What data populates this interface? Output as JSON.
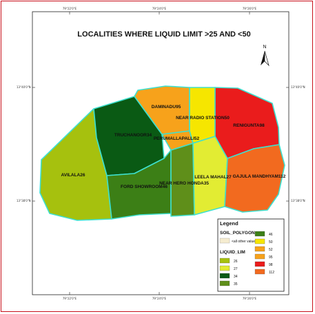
{
  "map": {
    "title": "LOCALITIES WHERE LIQUID LIMIT >25 AND <50",
    "north_label": "N",
    "top_ticks": [
      "79°22'0\"E",
      "79°24'0\"E",
      "79°26'0\"E"
    ],
    "bottom_ticks": [
      "79°22'0\"E",
      "79°24'0\"E",
      "79°26'0\"E"
    ],
    "left_ticks": [
      "13°40'0\"N",
      "13°38'0\"N"
    ],
    "right_ticks": [
      "13°40'0\"N",
      "13°38'0\"N"
    ],
    "boundary_color": "#3de0cf",
    "regions": [
      {
        "label": "AVILALA26",
        "color": "#a6c10e"
      },
      {
        "label": "TRUCHANOOR34",
        "color": "#0a5a14"
      },
      {
        "label": "FORD SHOWROOM46",
        "color": "#3c7f16"
      },
      {
        "label": "NEAR HERO HONDA35",
        "color": "#5f8f1a"
      },
      {
        "label": "PERUMALLAPALLI52",
        "color": "#f7a21b"
      },
      {
        "label": "DAMINADU95",
        "color": "#f7a21b"
      },
      {
        "label": "NEAR RADIO STATION50",
        "color": "#f6e600"
      },
      {
        "label": "LEELA MAHAL27",
        "color": "#e2ec33"
      },
      {
        "label": "RENIGUNTA98",
        "color": "#ea1c1c"
      },
      {
        "label": "GAJULA MANDHYAM112",
        "color": "#f26a1f"
      }
    ]
  },
  "legend": {
    "title": "Legend",
    "layer": "SOIL_POLYGON",
    "other": "<all other values>",
    "field": "LIQUID_LIM",
    "items": [
      {
        "value": "26",
        "color": "#a6c10e"
      },
      {
        "value": "27",
        "color": "#e2ec33"
      },
      {
        "value": "34",
        "color": "#0a5a14"
      },
      {
        "value": "35",
        "color": "#5f8f1a"
      },
      {
        "value": "46",
        "color": "#3c7f16"
      },
      {
        "value": "50",
        "color": "#f6e600"
      },
      {
        "value": "52",
        "color": "#f7a21b"
      },
      {
        "value": "95",
        "color": "#f7a21b"
      },
      {
        "value": "98",
        "color": "#ea1c1c"
      },
      {
        "value": "112",
        "color": "#f26a1f"
      }
    ]
  }
}
